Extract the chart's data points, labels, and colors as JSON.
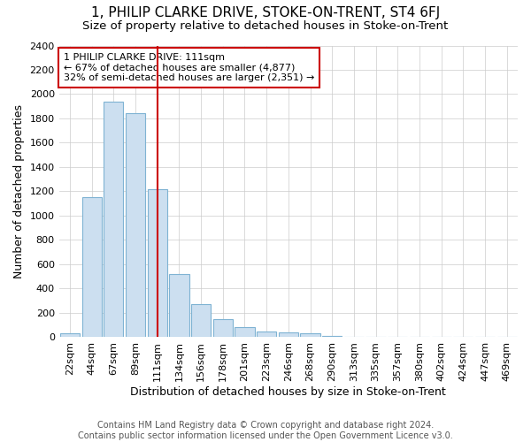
{
  "title": "1, PHILIP CLARKE DRIVE, STOKE-ON-TRENT, ST4 6FJ",
  "subtitle": "Size of property relative to detached houses in Stoke-on-Trent",
  "xlabel": "Distribution of detached houses by size in Stoke-on-Trent",
  "ylabel": "Number of detached properties",
  "categories": [
    "22sqm",
    "44sqm",
    "67sqm",
    "89sqm",
    "111sqm",
    "134sqm",
    "156sqm",
    "178sqm",
    "201sqm",
    "223sqm",
    "246sqm",
    "268sqm",
    "290sqm",
    "313sqm",
    "335sqm",
    "357sqm",
    "380sqm",
    "402sqm",
    "424sqm",
    "447sqm",
    "469sqm"
  ],
  "values": [
    30,
    1150,
    1940,
    1840,
    1220,
    520,
    270,
    150,
    80,
    50,
    40,
    30,
    10,
    5,
    3,
    2,
    2,
    2,
    1,
    1,
    1
  ],
  "bar_color": "#ccdff0",
  "bar_edge_color": "#7fb3d3",
  "highlight_index": 4,
  "highlight_line_color": "#cc0000",
  "annotation_text": "1 PHILIP CLARKE DRIVE: 111sqm\n← 67% of detached houses are smaller (4,877)\n32% of semi-detached houses are larger (2,351) →",
  "annotation_box_color": "white",
  "annotation_box_edge_color": "#cc0000",
  "ylim": [
    0,
    2400
  ],
  "yticks": [
    0,
    200,
    400,
    600,
    800,
    1000,
    1200,
    1400,
    1600,
    1800,
    2000,
    2200,
    2400
  ],
  "footer": "Contains HM Land Registry data © Crown copyright and database right 2024.\nContains public sector information licensed under the Open Government Licence v3.0.",
  "background_color": "#ffffff",
  "plot_background_color": "#ffffff",
  "grid_color": "#cccccc",
  "title_fontsize": 11,
  "subtitle_fontsize": 9.5,
  "axis_label_fontsize": 9,
  "tick_fontsize": 8,
  "footer_fontsize": 7,
  "annotation_fontsize": 8
}
